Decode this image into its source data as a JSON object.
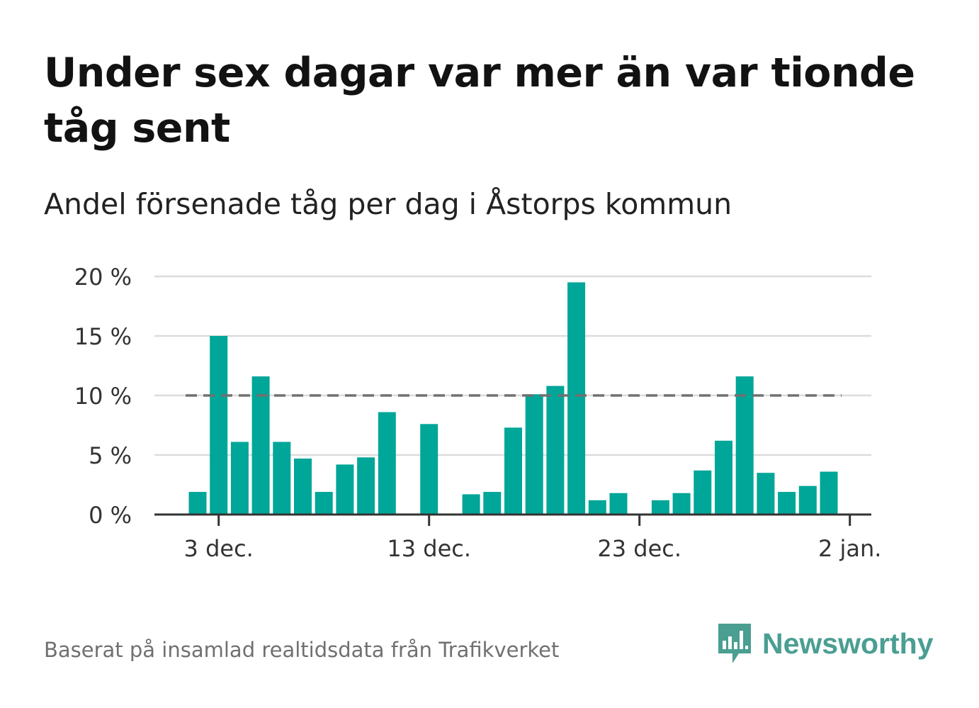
{
  "title": "Under sex dagar var mer än var tionde tåg sent",
  "subtitle": "Andel försenade tåg per dag i Åstorps kommun",
  "footer": {
    "source": "Baserat på insamlad realtidsdata från Trafikverket",
    "brand_name": "Newsworthy",
    "brand_icon": "newsworthy-logo-icon"
  },
  "colors": {
    "bar": "#00a698",
    "grid": "#dcdcdc",
    "axis": "#333333",
    "reference_line": "#707070",
    "brand": "#4a9e92"
  },
  "chart_data": {
    "type": "bar",
    "x": [
      "2 dec.",
      "3 dec.",
      "4 dec.",
      "5 dec.",
      "6 dec.",
      "7 dec.",
      "8 dec.",
      "9 dec.",
      "10 dec.",
      "11 dec.",
      "12 dec.",
      "13 dec.",
      "14 dec.",
      "15 dec.",
      "16 dec.",
      "17 dec.",
      "18 dec.",
      "19 dec.",
      "20 dec.",
      "21 dec.",
      "22 dec.",
      "23 dec.",
      "24 dec.",
      "25 dec.",
      "26 dec.",
      "27 dec.",
      "28 dec.",
      "29 dec.",
      "30 dec.",
      "31 dec.",
      "1 jan."
    ],
    "values": [
      1.9,
      15.0,
      6.1,
      11.6,
      6.1,
      4.7,
      1.9,
      4.2,
      4.8,
      8.6,
      null,
      7.6,
      null,
      1.7,
      1.9,
      7.3,
      10.1,
      10.8,
      19.5,
      1.2,
      1.8,
      null,
      1.2,
      1.8,
      3.7,
      6.2,
      11.6,
      3.5,
      1.9,
      2.4,
      3.6
    ],
    "ylim": [
      0,
      20
    ],
    "yticks": [
      0,
      5,
      10,
      15,
      20
    ],
    "ytick_labels": [
      "0 %",
      "5 %",
      "10 %",
      "15 %",
      "20 %"
    ],
    "xtick_positions": [
      "3 dec.",
      "13 dec.",
      "23 dec.",
      "2 jan."
    ],
    "xtick_labels": [
      "3 dec.",
      "13 dec.",
      "23 dec.",
      "2 jan."
    ],
    "reference_line": {
      "value": 10,
      "style": "dashed"
    },
    "grid": true,
    "xlabel": "",
    "ylabel": ""
  }
}
